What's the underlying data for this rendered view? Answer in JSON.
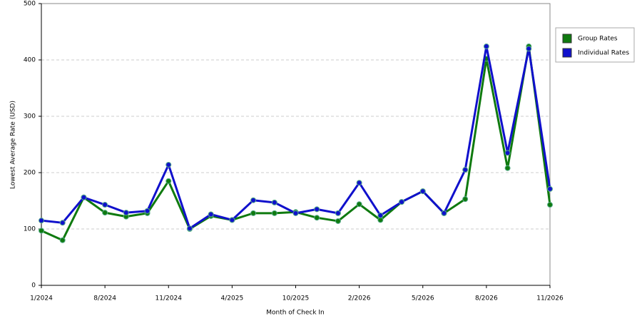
{
  "chart_data": {
    "type": "line",
    "x_label": "Month of Check In",
    "y_label": "Lowest Average Rate (USD)",
    "categories": [
      "1/2024",
      null,
      null,
      "8/2024",
      null,
      null,
      "11/2024",
      null,
      null,
      "4/2025",
      null,
      null,
      "10/2025",
      null,
      null,
      "2/2026",
      null,
      null,
      "5/2026",
      null,
      null,
      "8/2026",
      null,
      null,
      "11/2026"
    ],
    "series": [
      {
        "name": "Group Rates",
        "color": "#0f7a0f",
        "values": [
          97,
          80,
          156,
          129,
          122,
          128,
          185,
          100,
          123,
          116,
          128,
          128,
          130,
          120,
          114,
          144,
          116,
          148,
          167,
          128,
          153,
          402,
          208,
          424,
          143
        ]
      },
      {
        "name": "Individual Rates",
        "color": "#1010cc",
        "values": [
          115,
          111,
          156,
          143,
          129,
          132,
          214,
          101,
          126,
          116,
          151,
          147,
          128,
          135,
          128,
          182,
          124,
          148,
          167,
          128,
          205,
          424,
          235,
          420,
          171
        ]
      }
    ],
    "ylim": [
      0,
      500
    ],
    "yticks": [
      0,
      100,
      200,
      300,
      400,
      500
    ],
    "grid": true,
    "legend": "right"
  }
}
